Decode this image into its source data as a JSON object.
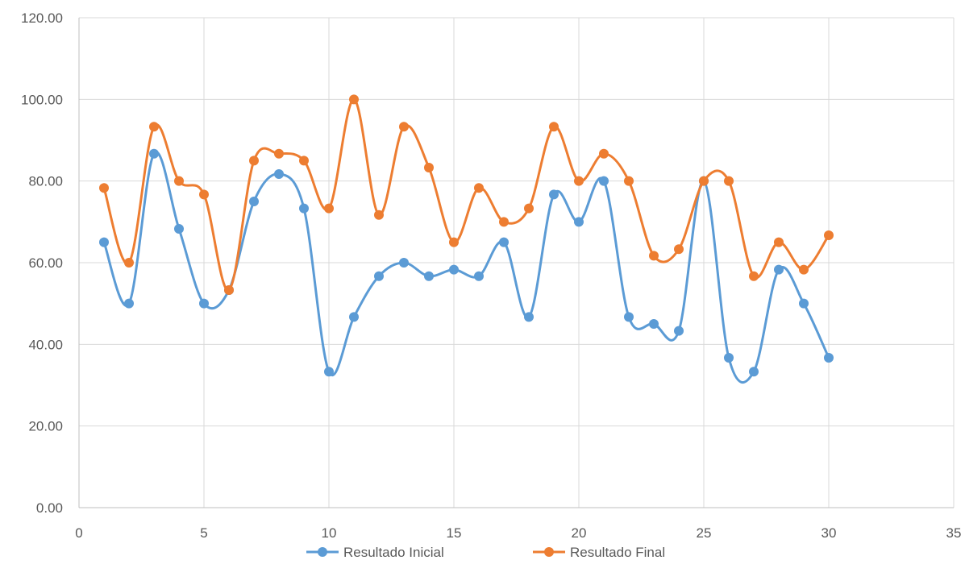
{
  "chart_data": {
    "type": "scatter",
    "xlim": [
      0,
      35
    ],
    "ylim": [
      0,
      120
    ],
    "x_ticks": [
      "0",
      "5",
      "10",
      "15",
      "20",
      "25",
      "30",
      "35"
    ],
    "y_ticks": [
      "0.00",
      "20.00",
      "40.00",
      "60.00",
      "80.00",
      "100.00",
      "120.00"
    ],
    "grid": true,
    "legend_position": "bottom",
    "smoothed_lines": true,
    "series": [
      {
        "name": "Resultado Inicial",
        "color": "#5b9bd5",
        "x": [
          1,
          2,
          3,
          4,
          5,
          6,
          7,
          8,
          9,
          10,
          11,
          12,
          13,
          14,
          15,
          16,
          17,
          18,
          19,
          20,
          21,
          22,
          23,
          24,
          25,
          26,
          27,
          28,
          29,
          30
        ],
        "y": [
          65.0,
          50.0,
          86.7,
          68.3,
          50.0,
          53.3,
          75.0,
          81.7,
          73.3,
          33.3,
          46.7,
          56.7,
          60.0,
          56.7,
          58.3,
          56.7,
          65.0,
          46.7,
          76.7,
          70.0,
          80.0,
          46.7,
          45.0,
          43.3,
          80.0,
          36.7,
          33.3,
          58.3,
          50.0,
          36.7
        ]
      },
      {
        "name": "Resultado Final",
        "color": "#ed7d31",
        "x": [
          1,
          2,
          3,
          4,
          5,
          6,
          7,
          8,
          9,
          10,
          11,
          12,
          13,
          14,
          15,
          16,
          17,
          18,
          19,
          20,
          21,
          22,
          23,
          24,
          25,
          26,
          27,
          28,
          29,
          30
        ],
        "y": [
          78.3,
          60.0,
          93.3,
          80.0,
          76.7,
          53.3,
          85.0,
          86.7,
          85.0,
          73.3,
          100.0,
          71.7,
          93.3,
          83.3,
          65.0,
          78.3,
          70.0,
          73.3,
          93.3,
          80.0,
          86.7,
          80.0,
          61.7,
          63.3,
          80.0,
          80.0,
          56.7,
          65.0,
          58.3,
          66.7
        ]
      }
    ]
  }
}
